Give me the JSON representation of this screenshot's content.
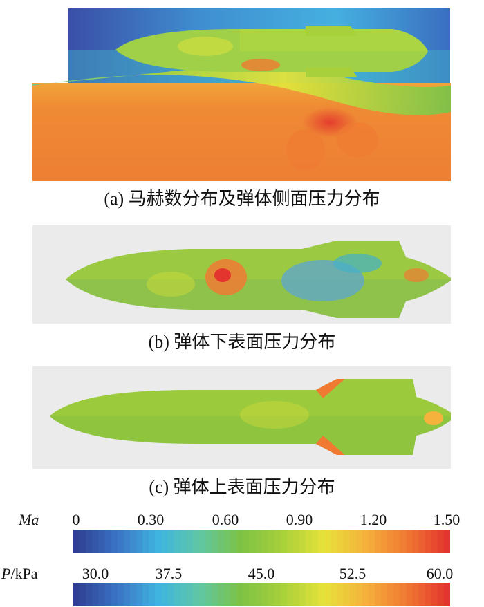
{
  "captions": {
    "a": "(a) 马赫数分布及弹体侧面压力分布",
    "b": "(b) 弹体下表面压力分布",
    "c": "(c) 弹体上表面压力分布"
  },
  "colorbars": {
    "mach": {
      "symbol": "Ma",
      "ticks": [
        "0",
        "0.30",
        "0.60",
        "0.90",
        "1.20",
        "1.50"
      ]
    },
    "pressure": {
      "symbol": "P",
      "unit": "/kPa",
      "ticks": [
        "30.0",
        "37.5",
        "45.0",
        "52.5",
        "60.0"
      ]
    }
  },
  "colormap": [
    "#2f3f93",
    "#3a74c4",
    "#3fb5e0",
    "#5fc7a4",
    "#7ec244",
    "#a7d03a",
    "#e5e33a",
    "#f5b23c",
    "#f07a32",
    "#e3352d"
  ]
}
